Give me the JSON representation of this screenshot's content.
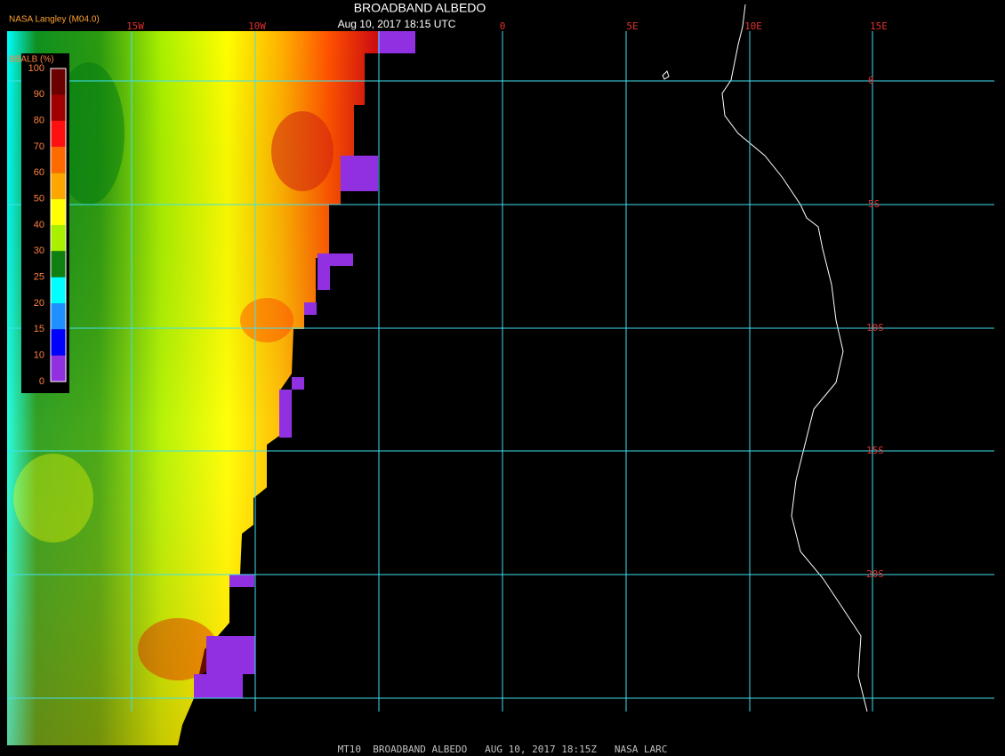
{
  "header": {
    "title": "BROADBAND ALBEDO",
    "timestamp": "Aug 10, 2017 18:15 UTC",
    "source": "NASA Langley (M04.0)"
  },
  "legend": {
    "title": "BBALB (%)",
    "ticks": [
      100,
      90,
      80,
      70,
      60,
      50,
      40,
      30,
      25,
      20,
      15,
      10,
      0
    ],
    "colors": [
      "#6b0000",
      "#a00000",
      "#ff1010",
      "#ff6a00",
      "#ffa500",
      "#ffff00",
      "#a8f000",
      "#108010",
      "#00ffff",
      "#1e90ff",
      "#0000ff",
      "#9030e0"
    ]
  },
  "map": {
    "lon_labels": [
      "15W",
      "10W",
      "0",
      "5E",
      "10E",
      "15E"
    ],
    "lat_labels": [
      "0",
      "5S",
      "10S",
      "15S",
      "20S"
    ]
  },
  "footer": "MT10  BROADBAND ALBEDO   AUG 10, 2017 18:15Z   NASA LARC"
}
